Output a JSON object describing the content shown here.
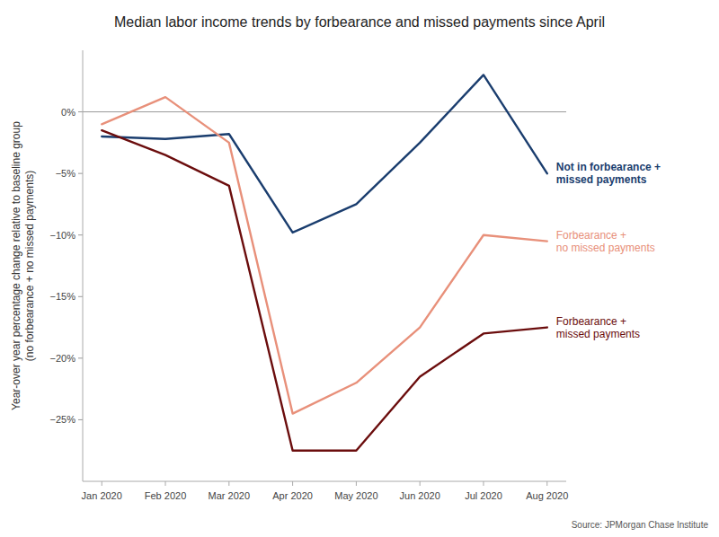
{
  "chart_data": {
    "type": "line",
    "title": "Median labor income trends by forbearance and missed payments since April",
    "ylabel": "Year-over year percentage change relative to baseline group\n(no forbearance + no missed payments)",
    "source": "Source: JPMorgan Chase Institute",
    "categories": [
      "Jan 2020",
      "Feb 2020",
      "Mar 2020",
      "Apr 2020",
      "May 2020",
      "Jun 2020",
      "Jul 2020",
      "Aug 2020"
    ],
    "series": [
      {
        "name": "Not in forbearance +\nmissed payments",
        "color": "#1a3d6e",
        "values": [
          -2.0,
          -2.2,
          -1.8,
          -9.8,
          -7.5,
          -2.5,
          3.0,
          -5.0
        ]
      },
      {
        "name": "Forbearance +\nno missed payments",
        "color": "#e8907a",
        "values": [
          -1.0,
          1.2,
          -2.5,
          -24.5,
          -22.0,
          -17.5,
          -10.0,
          -10.5
        ]
      },
      {
        "name": "Forbearance +\nmissed payments",
        "color": "#6b0d0d",
        "values": [
          -1.5,
          -3.5,
          -6.0,
          -27.5,
          -27.5,
          -21.5,
          -18.0,
          -17.5
        ]
      }
    ],
    "ylim": [
      -30,
      5
    ],
    "yticks": [
      {
        "value": 0,
        "label": "0%"
      },
      {
        "value": -5,
        "label": "−5%"
      },
      {
        "value": -10,
        "label": "−10%"
      },
      {
        "value": -15,
        "label": "−15%"
      },
      {
        "value": -20,
        "label": "−20%"
      },
      {
        "value": -25,
        "label": "−25%"
      }
    ],
    "grid": false
  }
}
